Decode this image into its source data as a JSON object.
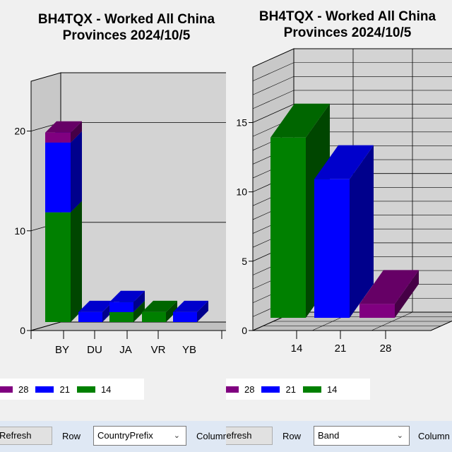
{
  "colors": {
    "band_28": "#800080",
    "band_21": "#0000ff",
    "band_14": "#008000"
  },
  "left_panel": {
    "title_line1": "BH4TQX - Worked All China",
    "title_line2": "Provinces 2024/10/5",
    "legend": [
      {
        "label": "28",
        "color": "#800080"
      },
      {
        "label": "21",
        "color": "#0000ff"
      },
      {
        "label": "14",
        "color": "#008000"
      }
    ],
    "toolbar": {
      "refresh_label": "Refresh",
      "row_label": "Row",
      "row_value": "CountryPrefix",
      "column_label": "Column"
    }
  },
  "right_panel": {
    "title_line1": "BH4TQX - Worked All China",
    "title_line2": "Provinces 2024/10/5",
    "legend": [
      {
        "label": "28",
        "color": "#800080"
      },
      {
        "label": "21",
        "color": "#0000ff"
      },
      {
        "label": "14",
        "color": "#008000"
      }
    ],
    "toolbar": {
      "refresh_label": "Refresh",
      "row_label": "Row",
      "row_value": "Band",
      "column_label": "Column"
    }
  },
  "chart_data": [
    {
      "type": "bar",
      "stacked": true,
      "title": "BH4TQX - Worked All China Provinces 2024/10/5",
      "categories": [
        "BY",
        "DU",
        "JA",
        "VR",
        "YB"
      ],
      "series": [
        {
          "name": "14",
          "values": [
            11,
            0,
            1,
            1,
            0
          ]
        },
        {
          "name": "21",
          "values": [
            7,
            1,
            1,
            0,
            1
          ]
        },
        {
          "name": "28",
          "values": [
            1,
            0,
            0,
            0,
            0
          ]
        }
      ],
      "yticks": [
        0,
        10,
        20
      ],
      "ylim": [
        0,
        25
      ],
      "grid": "horizontal",
      "legend_position": "bottom-left"
    },
    {
      "type": "bar",
      "title": "BH4TQX - Worked All China Provinces 2024/10/5",
      "categories": [
        "14",
        "21",
        "28"
      ],
      "values": [
        13,
        10,
        1
      ],
      "yticks": [
        0,
        5,
        10,
        15
      ],
      "ylim": [
        0,
        19
      ],
      "grid": "both",
      "legend_position": "bottom-left"
    }
  ]
}
